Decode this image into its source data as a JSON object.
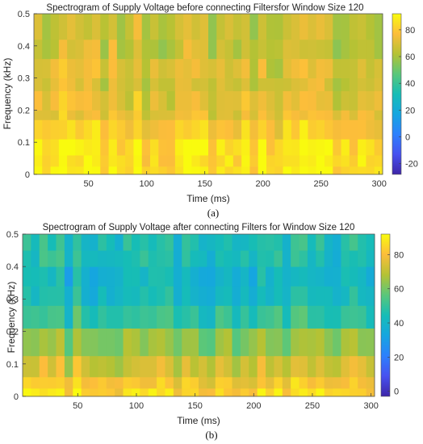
{
  "chart_data": [
    {
      "type": "heatmap",
      "title": "Spectrogram of Supply Voltage before connecting Filtersfor Window Size 120",
      "caption": "(a)",
      "xlabel": "Time (ms)",
      "ylabel": "Frequency (kHz)",
      "xlim": [
        3,
        303
      ],
      "ylim": [
        0,
        0.5
      ],
      "xticks": [
        50,
        100,
        150,
        200,
        250,
        300
      ],
      "yticks": [
        0,
        0.1,
        0.2,
        0.3,
        0.4,
        0.5
      ],
      "colorbar": {
        "colormap": "parula",
        "range": [
          -28,
          92
        ],
        "ticks": [
          -20,
          0,
          20,
          40,
          60,
          80
        ]
      },
      "freq_bands": [
        {
          "from": 0.0,
          "to": 0.025,
          "value": 87
        },
        {
          "from": 0.025,
          "to": 0.06,
          "value": 85
        },
        {
          "from": 0.06,
          "to": 0.11,
          "value": 86
        },
        {
          "from": 0.11,
          "to": 0.17,
          "value": 80
        },
        {
          "from": 0.17,
          "to": 0.2,
          "value": 73
        },
        {
          "from": 0.2,
          "to": 0.26,
          "value": 72
        },
        {
          "from": 0.26,
          "to": 0.3,
          "value": 68
        },
        {
          "from": 0.3,
          "to": 0.36,
          "value": 70
        },
        {
          "from": 0.36,
          "to": 0.42,
          "value": 66
        },
        {
          "from": 0.42,
          "to": 0.5,
          "value": 65
        }
      ],
      "time_bins": 42,
      "variation": 16
    },
    {
      "type": "heatmap",
      "title": "Spectrogram of Supply Voltage after connecting Filters for Window Size 120",
      "caption": "(b)",
      "xlabel": "Time (ms)",
      "ylabel": "Frequency (kHz)",
      "xlim": [
        3,
        303
      ],
      "ylim": [
        0,
        0.5
      ],
      "xticks": [
        50,
        100,
        150,
        200,
        250,
        300
      ],
      "yticks": [
        0,
        0.1,
        0.2,
        0.3,
        0.4,
        0.5
      ],
      "colorbar": {
        "colormap": "parula",
        "range": [
          -3,
          92
        ],
        "ticks": [
          0,
          20,
          40,
          60,
          80
        ]
      },
      "freq_bands": [
        {
          "from": 0.0,
          "to": 0.025,
          "value": 85
        },
        {
          "from": 0.025,
          "to": 0.06,
          "value": 80
        },
        {
          "from": 0.06,
          "to": 0.125,
          "value": 73
        },
        {
          "from": 0.125,
          "to": 0.21,
          "value": 63
        },
        {
          "from": 0.21,
          "to": 0.28,
          "value": 48
        },
        {
          "from": 0.28,
          "to": 0.34,
          "value": 42
        },
        {
          "from": 0.34,
          "to": 0.4,
          "value": 40
        },
        {
          "from": 0.4,
          "to": 0.45,
          "value": 44
        },
        {
          "from": 0.45,
          "to": 0.5,
          "value": 45
        }
      ],
      "time_bins": 42,
      "variation": 14
    }
  ]
}
